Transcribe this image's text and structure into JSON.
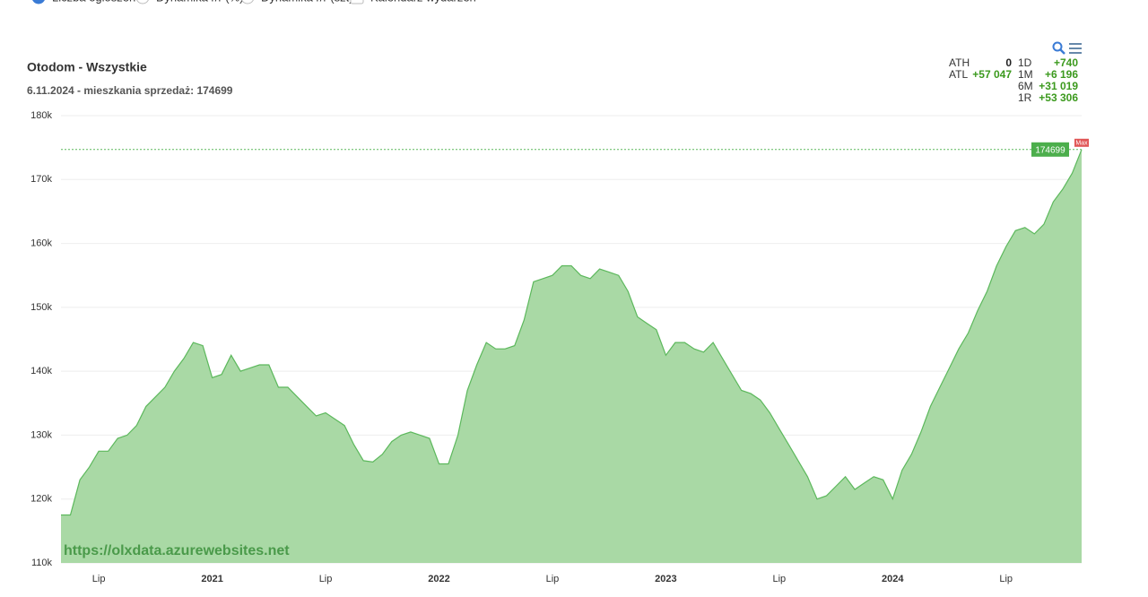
{
  "chart_data": {
    "type": "area",
    "options": [
      "Liczba ogłoszeń",
      "Dynamika r/r (%)",
      "Dynamika r/r (szt)",
      "Kalendarz wydarzeń"
    ],
    "title": "Otodom - Wszystkie",
    "subtitle": "6.11.2024 - mieszkania sprzedaż: 174699",
    "watermark": "https://olxdata.azurewebsites.net",
    "max_label": "Max",
    "stats": {
      "left": [
        {
          "label": "ATH",
          "value": "0"
        },
        {
          "label": "ATL",
          "value": "+57 047"
        }
      ],
      "right": [
        {
          "label": "1D",
          "value": "+740"
        },
        {
          "label": "1M",
          "value": "+6 196"
        },
        {
          "label": "6M",
          "value": "+31 019"
        },
        {
          "label": "1R",
          "value": "+53 306"
        }
      ]
    },
    "categories": [
      null,
      null,
      null,
      null,
      "Lip",
      null,
      null,
      null,
      null,
      null,
      null,
      null,
      null,
      null,
      null,
      null,
      "2021",
      null,
      null,
      null,
      null,
      null,
      null,
      null,
      null,
      null,
      null,
      null,
      "Lip",
      null,
      null,
      null,
      null,
      null,
      null,
      null,
      null,
      null,
      null,
      null,
      "2022",
      null,
      null,
      null,
      null,
      null,
      null,
      null,
      null,
      null,
      null,
      null,
      "Lip",
      null,
      null,
      null,
      null,
      null,
      null,
      null,
      null,
      null,
      null,
      null,
      "2023",
      null,
      null,
      null,
      null,
      null,
      null,
      null,
      null,
      null,
      null,
      null,
      "Lip",
      null,
      null,
      null,
      null,
      null,
      null,
      null,
      null,
      null,
      null,
      null,
      "2024",
      null,
      null,
      null,
      null,
      null,
      null,
      null,
      null,
      null,
      null,
      null,
      "Lip",
      null,
      null,
      null,
      null,
      null,
      null,
      null,
      null
    ],
    "series": [
      {
        "name": "Otodom - Wszystkie",
        "color": "#5cb85c",
        "fill": "#a9d9a5",
        "values": [
          117500,
          117500,
          123000,
          125000,
          127500,
          127500,
          129500,
          130000,
          131500,
          134500,
          136000,
          137500,
          140000,
          142000,
          144500,
          144000,
          139000,
          139500,
          142500,
          140000,
          140500,
          141000,
          141000,
          137500,
          137500,
          136000,
          134500,
          133000,
          133500,
          132500,
          131500,
          128500,
          126000,
          125800,
          127000,
          129000,
          130000,
          130500,
          130000,
          129500,
          125500,
          125500,
          130000,
          137000,
          141000,
          144500,
          143500,
          143500,
          144000,
          148000,
          154000,
          154500,
          155000,
          156500,
          156500,
          155000,
          154500,
          156000,
          155500,
          155000,
          152500,
          148500,
          147500,
          146500,
          142500,
          144500,
          144500,
          143500,
          143000,
          144500,
          142000,
          139500,
          137000,
          136500,
          135500,
          133500,
          131000,
          128500,
          126000,
          123500,
          120000,
          120500,
          122000,
          123500,
          121500,
          122500,
          123500,
          123000,
          120000,
          124500,
          127000,
          130500,
          134500,
          137500,
          140500,
          143500,
          146000,
          149500,
          152500,
          156500,
          159500,
          162000,
          162500,
          161500,
          163000,
          166500,
          168500,
          171000,
          174699
        ]
      }
    ],
    "ylim": [
      110000,
      180000
    ],
    "yticks": [
      {
        "value": 110000,
        "label": "110k"
      },
      {
        "value": 120000,
        "label": "120k"
      },
      {
        "value": 130000,
        "label": "130k"
      },
      {
        "value": 140000,
        "label": "140k"
      },
      {
        "value": 150000,
        "label": "150k"
      },
      {
        "value": 160000,
        "label": "160k"
      },
      {
        "value": 170000,
        "label": "170k"
      },
      {
        "value": 180000,
        "label": "180k"
      }
    ],
    "grid": true
  }
}
